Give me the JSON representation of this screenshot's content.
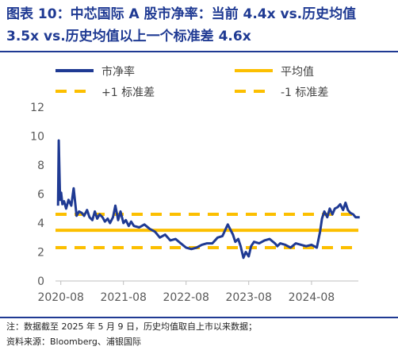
{
  "title": "图表 10：中芯国际 A 股市净率：当前 4.4x vs.历史均值 3.5x vs.历史均值以上一个标准差 4.6x",
  "notes": {
    "note1": "注：数据截至 2025 年 5 月 9 日，历史均值取自上市以来数据；",
    "note2": "资料来源：Bloomberg、浦银国际"
  },
  "colors": {
    "series": "#1f3a93",
    "reference": "#fcbf00",
    "title": "#1f3a93",
    "axis": "#595959"
  },
  "chart_data": {
    "type": "line",
    "ylim": [
      0,
      12
    ],
    "yticks": [
      0,
      2,
      4,
      6,
      8,
      10,
      12
    ],
    "xticks": [
      "2020-08",
      "2021-08",
      "2022-08",
      "2023-08",
      "2024-08"
    ],
    "xrange": [
      "2020-07",
      "2025-05"
    ],
    "grid": false,
    "legend_position": "top",
    "legend": [
      "市净率",
      "平均值",
      "+1 标准差",
      "-1 标准差"
    ],
    "series": [
      {
        "name": "市净率",
        "points": [
          [
            "2020-07-16",
            5.2
          ],
          [
            "2020-07-20",
            9.7
          ],
          [
            "2020-07-24",
            7.5
          ],
          [
            "2020-07-28",
            5.6
          ],
          [
            "2020-08-03",
            6.1
          ],
          [
            "2020-08-10",
            5.3
          ],
          [
            "2020-08-20",
            5.5
          ],
          [
            "2020-09-01",
            5.0
          ],
          [
            "2020-09-15",
            5.6
          ],
          [
            "2020-10-01",
            5.2
          ],
          [
            "2020-10-15",
            6.4
          ],
          [
            "2020-11-01",
            4.5
          ],
          [
            "2020-11-15",
            4.8
          ],
          [
            "2020-12-01",
            4.7
          ],
          [
            "2020-12-15",
            4.5
          ],
          [
            "2021-01-01",
            4.9
          ],
          [
            "2021-01-15",
            4.4
          ],
          [
            "2021-02-01",
            4.2
          ],
          [
            "2021-02-15",
            4.8
          ],
          [
            "2021-03-01",
            4.3
          ],
          [
            "2021-03-15",
            4.6
          ],
          [
            "2021-04-01",
            4.4
          ],
          [
            "2021-04-15",
            4.1
          ],
          [
            "2021-05-01",
            4.3
          ],
          [
            "2021-05-15",
            4.0
          ],
          [
            "2021-06-01",
            4.4
          ],
          [
            "2021-06-15",
            5.2
          ],
          [
            "2021-07-01",
            4.2
          ],
          [
            "2021-07-15",
            4.8
          ],
          [
            "2021-08-01",
            4.0
          ],
          [
            "2021-08-15",
            4.2
          ],
          [
            "2021-09-01",
            3.8
          ],
          [
            "2021-09-15",
            4.1
          ],
          [
            "2021-10-01",
            3.8
          ],
          [
            "2021-11-01",
            3.7
          ],
          [
            "2021-12-01",
            3.9
          ],
          [
            "2022-01-01",
            3.6
          ],
          [
            "2022-02-01",
            3.4
          ],
          [
            "2022-03-01",
            3.0
          ],
          [
            "2022-04-01",
            3.2
          ],
          [
            "2022-05-01",
            2.8
          ],
          [
            "2022-06-01",
            2.9
          ],
          [
            "2022-07-01",
            2.6
          ],
          [
            "2022-08-01",
            2.3
          ],
          [
            "2022-09-01",
            2.2
          ],
          [
            "2022-10-01",
            2.3
          ],
          [
            "2022-11-01",
            2.5
          ],
          [
            "2022-12-01",
            2.6
          ],
          [
            "2023-01-01",
            2.6
          ],
          [
            "2023-02-01",
            3.0
          ],
          [
            "2023-03-01",
            3.1
          ],
          [
            "2023-04-01",
            3.9
          ],
          [
            "2023-05-01",
            3.2
          ],
          [
            "2023-05-15",
            2.7
          ],
          [
            "2023-06-01",
            2.9
          ],
          [
            "2023-06-15",
            2.4
          ],
          [
            "2023-07-01",
            1.6
          ],
          [
            "2023-07-15",
            2.0
          ],
          [
            "2023-08-01",
            1.7
          ],
          [
            "2023-08-15",
            2.4
          ],
          [
            "2023-09-01",
            2.7
          ],
          [
            "2023-10-01",
            2.6
          ],
          [
            "2023-11-01",
            2.8
          ],
          [
            "2023-12-01",
            2.9
          ],
          [
            "2024-01-01",
            2.6
          ],
          [
            "2024-01-15",
            2.4
          ],
          [
            "2024-02-01",
            2.6
          ],
          [
            "2024-03-01",
            2.5
          ],
          [
            "2024-04-01",
            2.3
          ],
          [
            "2024-05-01",
            2.6
          ],
          [
            "2024-06-01",
            2.5
          ],
          [
            "2024-07-01",
            2.4
          ],
          [
            "2024-08-01",
            2.5
          ],
          [
            "2024-09-01",
            2.3
          ],
          [
            "2024-09-20",
            3.4
          ],
          [
            "2024-10-01",
            4.3
          ],
          [
            "2024-10-15",
            4.8
          ],
          [
            "2024-11-01",
            4.4
          ],
          [
            "2024-11-15",
            5.0
          ],
          [
            "2024-12-01",
            4.6
          ],
          [
            "2024-12-15",
            5.0
          ],
          [
            "2025-01-01",
            5.1
          ],
          [
            "2025-01-15",
            5.3
          ],
          [
            "2025-02-01",
            4.9
          ],
          [
            "2025-02-15",
            5.4
          ],
          [
            "2025-03-01",
            4.9
          ],
          [
            "2025-03-15",
            4.7
          ],
          [
            "2025-04-01",
            4.6
          ],
          [
            "2025-04-15",
            4.4
          ],
          [
            "2025-05-09",
            4.4
          ]
        ]
      },
      {
        "name": "平均值",
        "value": 3.5
      },
      {
        "name": "+1 标准差",
        "value": 4.6
      },
      {
        "name": "-1 标准差",
        "value": 2.3
      }
    ]
  }
}
